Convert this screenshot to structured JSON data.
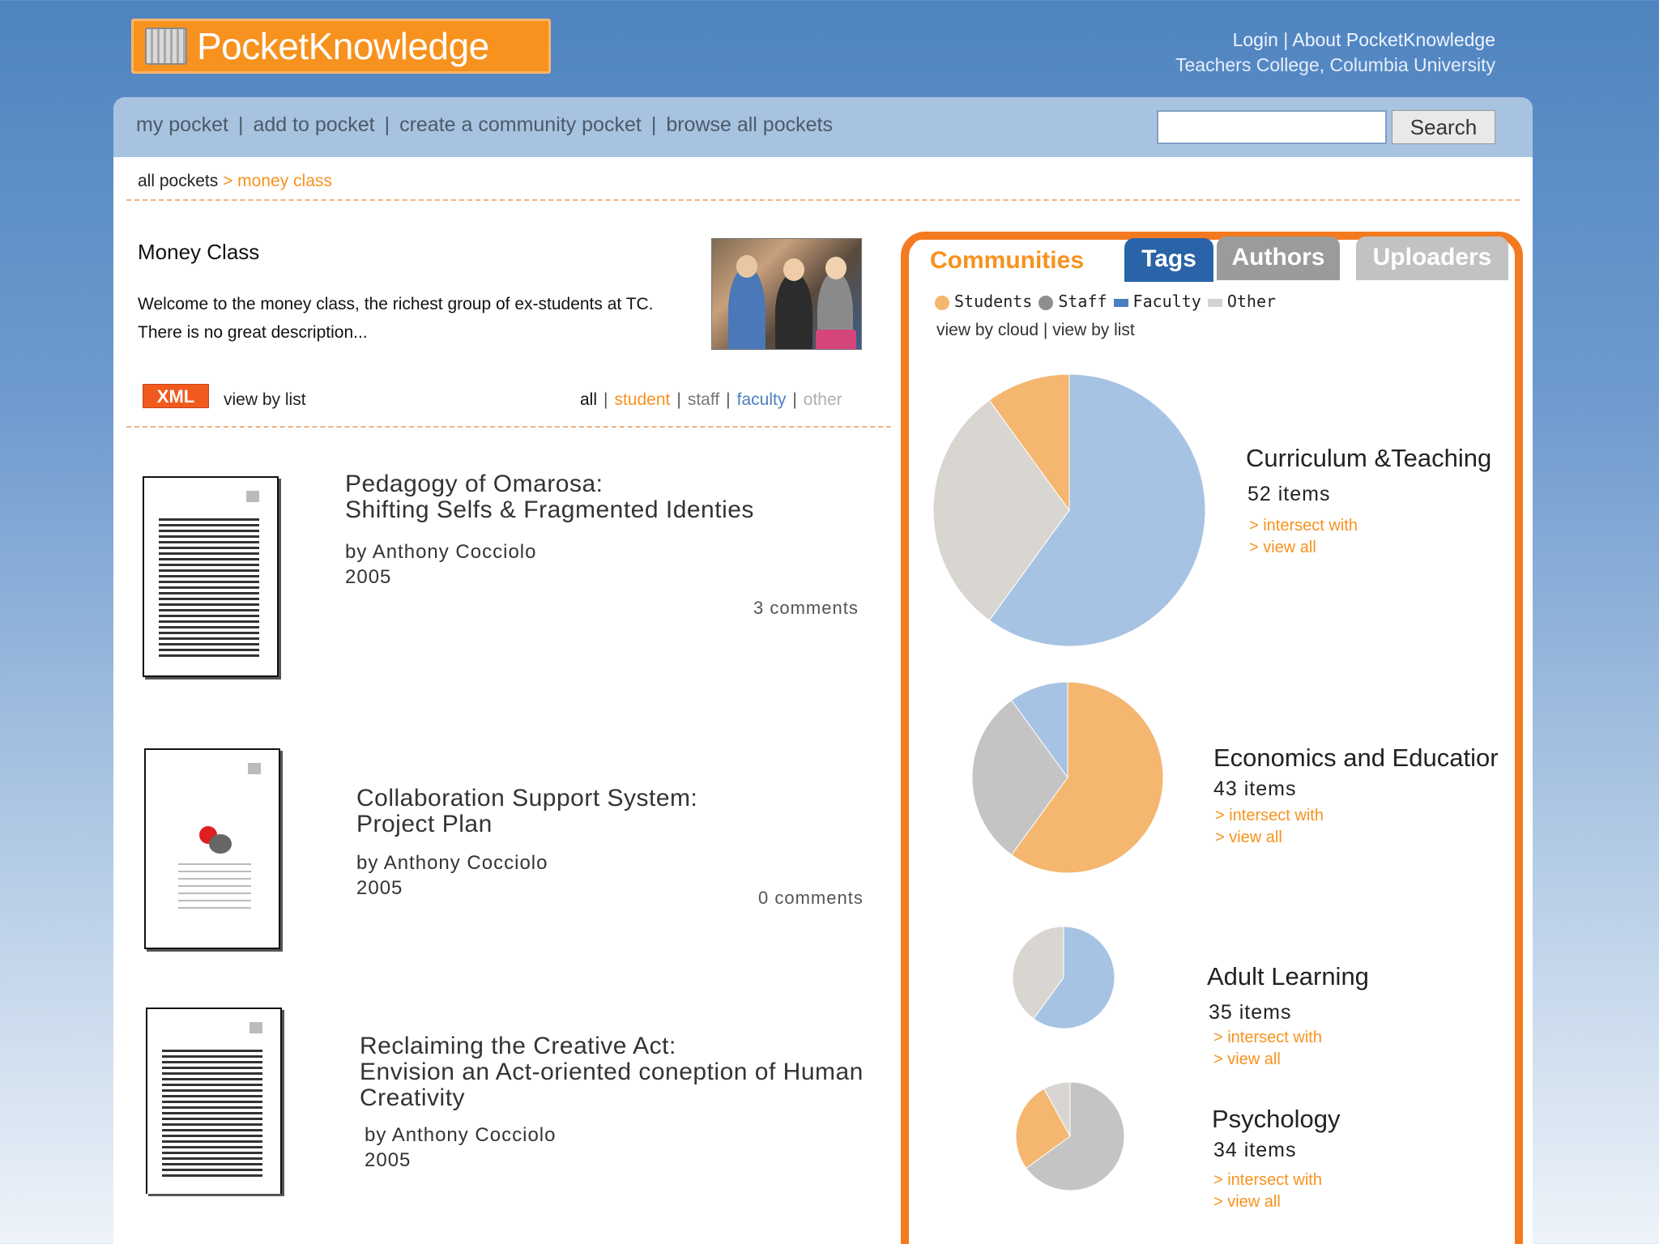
{
  "header": {
    "logo_text": "PocketKnowledge",
    "login": "Login",
    "separator": "|",
    "about": "About PocketKnowledge",
    "institution": "Teachers College, Columbia University"
  },
  "nav": {
    "items": [
      "my pocket",
      "add to pocket",
      "create a community pocket",
      "browse all pockets"
    ],
    "separator": "|",
    "search_value": "",
    "search_label": "Search"
  },
  "breadcrumb": {
    "root": "all pockets",
    "arrow": ">",
    "current": "money class"
  },
  "pocket": {
    "title": "Money Class",
    "description_line1": "Welcome to the money class, the richest group of ex-students at TC.",
    "description_line2": "There is no great description..."
  },
  "toolbar": {
    "xml_label": "XML",
    "view_by_list": "view by list",
    "filters": {
      "all": "all",
      "student": "student",
      "staff": "staff",
      "faculty": "faculty",
      "other": "other"
    }
  },
  "documents": [
    {
      "title_lines": [
        "Pedagogy of Omarosa:",
        "Shifting Selfs & Fragmented Identies"
      ],
      "author": "by Anthony Cocciolo",
      "year": "2005",
      "comments": "3 comments"
    },
    {
      "title_lines": [
        "Collaboration Support System:",
        "Project Plan"
      ],
      "author": "by Anthony Cocciolo",
      "year": "2005",
      "comments": "0 comments"
    },
    {
      "title_lines": [
        "Reclaiming the Creative Act:",
        "Envision an Act-oriented coneption of Human",
        "Creativity"
      ],
      "author": "by Anthony Cocciolo",
      "year": "2005",
      "comments": ""
    }
  ],
  "tabs": {
    "communities": "Communities",
    "tags": "Tags",
    "authors": "Authors",
    "uploaders": "Uploaders"
  },
  "legend": {
    "students": "Students",
    "staff": "Staff",
    "faculty": "Faculty",
    "other": "Other"
  },
  "view_modes": {
    "cloud": "view by cloud",
    "sep": "|",
    "list": "view by list"
  },
  "colors": {
    "students": "#f5b66f",
    "staff": "#c4c4c4",
    "faculty": "#a7c3e3",
    "other": "#d9d6d1",
    "accent": "#f7921e"
  },
  "communities": [
    {
      "name": "Curriculum &Teaching",
      "items": "52 items",
      "intersect": "> intersect with",
      "view_all": "> view all",
      "shares": {
        "faculty": 60,
        "other": 30,
        "students": 10
      }
    },
    {
      "name": "Economics and Educatior",
      "items": "43 items",
      "intersect": "> intersect with",
      "view_all": "> view all",
      "shares": {
        "students": 60,
        "staff": 30,
        "faculty": 10
      }
    },
    {
      "name": "Adult Learning",
      "items": "35 items",
      "intersect": "> intersect with",
      "view_all": "> view all",
      "shares": {
        "faculty": 60,
        "other": 40
      }
    },
    {
      "name": "Psychology",
      "items": "34 items",
      "intersect": "> intersect with",
      "view_all": "> view all",
      "shares": {
        "staff": 65,
        "students": 27,
        "other": 8
      }
    }
  ]
}
